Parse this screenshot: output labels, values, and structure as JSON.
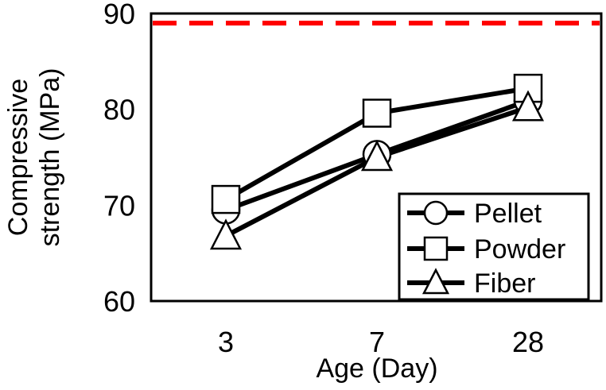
{
  "chart_data": {
    "type": "line",
    "categories": [
      "3",
      "7",
      "28"
    ],
    "ylim": [
      60,
      90
    ],
    "yticks": [
      "60",
      "70",
      "80",
      "90"
    ],
    "xlabel": "Age (Day)",
    "ylabel_lines": [
      "Compressive",
      "strength (MPa)"
    ],
    "reference_line": {
      "value": 89,
      "color": "#ff0000",
      "style": "dashed"
    },
    "series": [
      {
        "name": "Pellet",
        "marker": "circle",
        "values": [
          69.5,
          75.3,
          80.9
        ]
      },
      {
        "name": "Powder",
        "marker": "square",
        "values": [
          70.6,
          79.6,
          82.2
        ]
      },
      {
        "name": "Fiber",
        "marker": "triangle",
        "values": [
          66.8,
          75.0,
          80.2
        ]
      }
    ],
    "legend_position": "bottom-right",
    "colors": {
      "line": "#000000",
      "marker_fill": "#ffffff",
      "reference": "#ff0000"
    }
  }
}
